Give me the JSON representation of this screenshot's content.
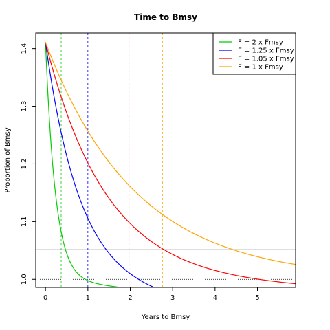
{
  "chart_data": {
    "type": "line",
    "title": "Time to Bmsy",
    "xlabel": "Years to Bmsy",
    "ylabel": "Proportion of Bmsy",
    "xlim": [
      -0.23,
      5.9
    ],
    "ylim": [
      0.986,
      1.427
    ],
    "xticks": [
      0,
      1,
      2,
      3,
      4,
      5
    ],
    "yticks": [
      1.0,
      1.1,
      1.2,
      1.3,
      1.4
    ],
    "x_tick_labels": [
      "0",
      "1",
      "2",
      "3",
      "4",
      "5"
    ],
    "y_tick_labels": [
      "1.0",
      "1.1",
      "1.2",
      "1.3",
      "1.4"
    ],
    "legend_position": "top-right",
    "start_value": 1.411,
    "series": [
      {
        "name": "F = 2 x Fmsy",
        "color": "#00cd00",
        "decay_rate": 4.25,
        "vline_x": 0.37
      },
      {
        "name": "F = 1.25 x Fmsy",
        "color": "#0000ff",
        "decay_rate": 1.25,
        "vline_x": 1.0
      },
      {
        "name": "F = 1.05 x Fmsy",
        "color": "#ff0000",
        "decay_rate": 0.7,
        "vline_x": 1.97
      },
      {
        "name": "F = 1 x Fmsy",
        "color": "#ffa500",
        "decay_rate": 0.47,
        "vline_x": 2.76
      }
    ],
    "reference_lines": [
      {
        "y": 1.0,
        "color": "#000000",
        "style": "dotted"
      },
      {
        "y": 1.052,
        "color": "#d3d3d3",
        "style": "solid"
      }
    ]
  }
}
